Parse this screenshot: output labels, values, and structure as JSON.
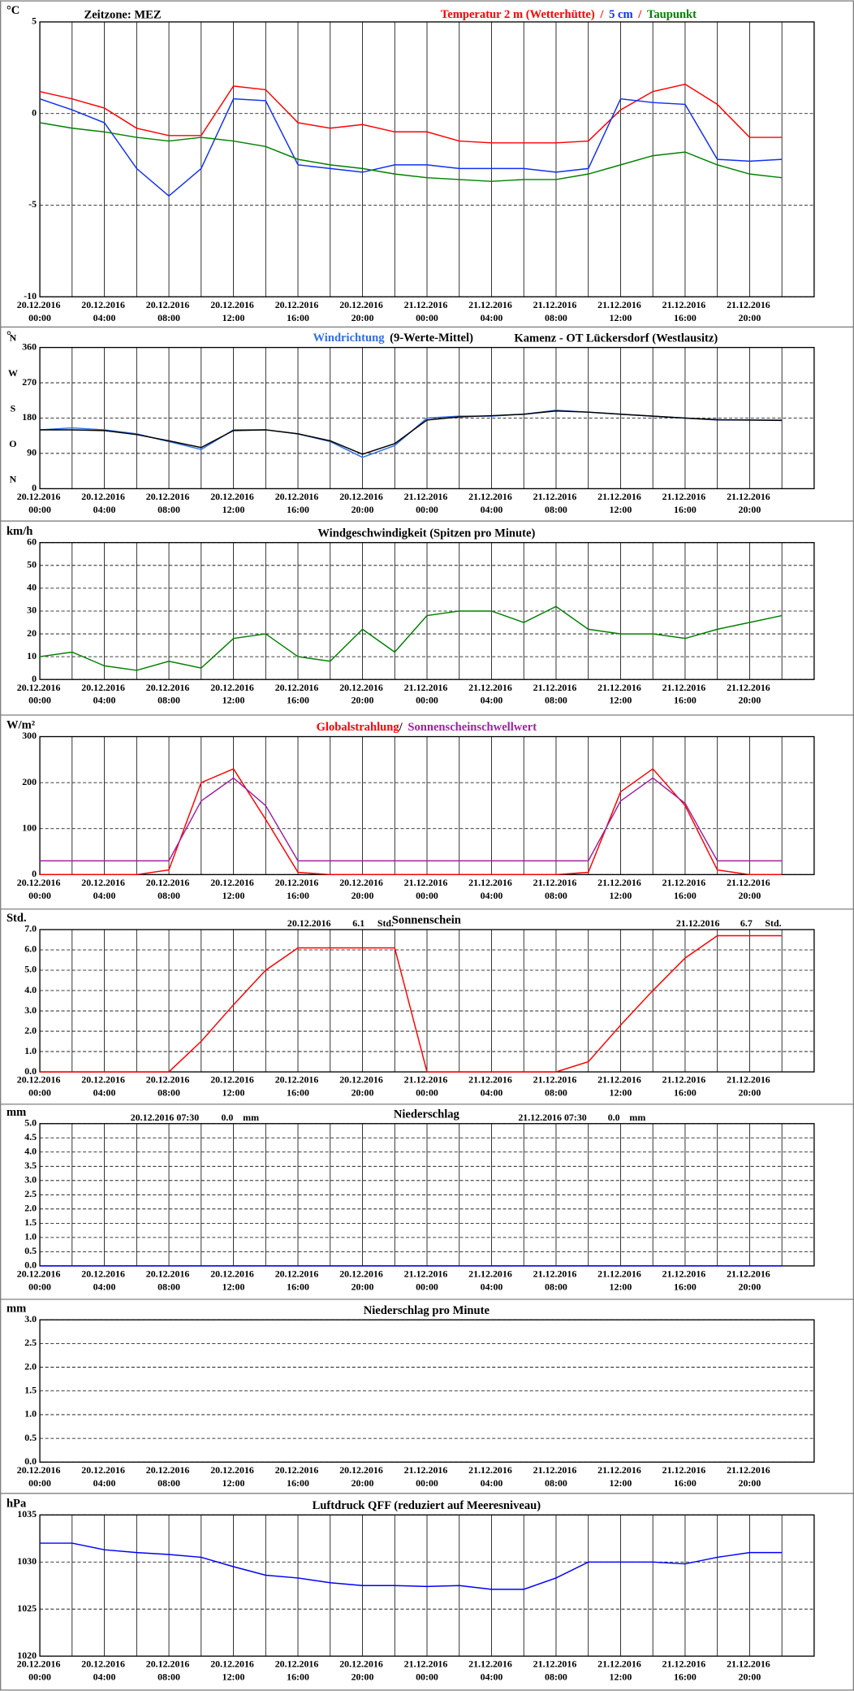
{
  "chart_data": [
    {
      "type": "line",
      "ylabel": "°C",
      "note": "Zeitzone: MEZ",
      "separator": "/",
      "x": [
        "20.12.2016 00:00",
        "20.12.2016 02:00",
        "20.12.2016 04:00",
        "20.12.2016 06:00",
        "20.12.2016 08:00",
        "20.12.2016 10:00",
        "20.12.2016 12:00",
        "20.12.2016 14:00",
        "20.12.2016 16:00",
        "20.12.2016 18:00",
        "20.12.2016 20:00",
        "20.12.2016 22:00",
        "21.12.2016 00:00",
        "21.12.2016 02:00",
        "21.12.2016 04:00",
        "21.12.2016 06:00",
        "21.12.2016 08:00",
        "21.12.2016 10:00",
        "21.12.2016 12:00",
        "21.12.2016 14:00",
        "21.12.2016 16:00",
        "21.12.2016 18:00",
        "21.12.2016 20:00",
        "21.12.2016 22:00"
      ],
      "xlim": [
        "20.12.2016 00:00",
        "21.12.2016 24:00"
      ],
      "xticks": [
        "20.12.2016 00:00",
        "20.12.2016 04:00",
        "20.12.2016 08:00",
        "20.12.2016 12:00",
        "20.12.2016 16:00",
        "20.12.2016 20:00",
        "21.12.2016 00:00",
        "21.12.2016 04:00",
        "21.12.2016 08:00",
        "21.12.2016 12:00",
        "21.12.2016 16:00",
        "21.12.2016 20:00"
      ],
      "ylim": [
        -10,
        5
      ],
      "yticks": [
        5,
        0,
        -5,
        -10
      ],
      "series": [
        {
          "name": "Temperatur 2 m (Wetterhütte)",
          "color": "#ff0000",
          "values": [
            1.2,
            0.8,
            0.3,
            -0.8,
            -1.2,
            -1.2,
            1.5,
            1.3,
            -0.5,
            -0.8,
            -0.6,
            -1.0,
            -1.0,
            -1.5,
            -1.6,
            -1.6,
            -1.6,
            -1.5,
            0.2,
            1.2,
            1.6,
            0.5,
            -1.3,
            -1.3
          ]
        },
        {
          "name": "5 cm",
          "color": "#1030f0",
          "values": [
            0.8,
            0.2,
            -0.5,
            -3.0,
            -4.5,
            -3.0,
            0.8,
            0.7,
            -2.8,
            -3.0,
            -3.2,
            -2.8,
            -2.8,
            -3.0,
            -3.0,
            -3.0,
            -3.2,
            -3.0,
            0.8,
            0.6,
            0.5,
            -2.5,
            -2.6,
            -2.5
          ]
        },
        {
          "name": "Taupunkt",
          "color": "#008000",
          "values": [
            -0.5,
            -0.8,
            -1.0,
            -1.3,
            -1.5,
            -1.3,
            -1.5,
            -1.8,
            -2.5,
            -2.8,
            -3.0,
            -3.3,
            -3.5,
            -3.6,
            -3.7,
            -3.6,
            -3.6,
            -3.3,
            -2.8,
            -2.3,
            -2.1,
            -2.8,
            -3.3,
            -3.5
          ]
        }
      ]
    },
    {
      "type": "line",
      "ylabel": "°",
      "subtitle": "Kamenz - OT Lückersdorf (Westlausitz)",
      "x": [
        "20.12.2016 00:00",
        "20.12.2016 02:00",
        "20.12.2016 04:00",
        "20.12.2016 06:00",
        "20.12.2016 08:00",
        "20.12.2016 10:00",
        "20.12.2016 12:00",
        "20.12.2016 14:00",
        "20.12.2016 16:00",
        "20.12.2016 18:00",
        "20.12.2016 20:00",
        "20.12.2016 22:00",
        "21.12.2016 00:00",
        "21.12.2016 02:00",
        "21.12.2016 04:00",
        "21.12.2016 06:00",
        "21.12.2016 08:00",
        "21.12.2016 10:00",
        "21.12.2016 12:00",
        "21.12.2016 14:00",
        "21.12.2016 16:00",
        "21.12.2016 18:00",
        "21.12.2016 20:00",
        "21.12.2016 22:00"
      ],
      "xlim": [
        "20.12.2016 00:00",
        "21.12.2016 24:00"
      ],
      "xticks": [
        "20.12.2016 00:00",
        "20.12.2016 04:00",
        "20.12.2016 08:00",
        "20.12.2016 12:00",
        "20.12.2016 16:00",
        "20.12.2016 20:00",
        "21.12.2016 00:00",
        "21.12.2016 04:00",
        "21.12.2016 08:00",
        "21.12.2016 12:00",
        "21.12.2016 16:00",
        "21.12.2016 20:00"
      ],
      "ylim": [
        0,
        360
      ],
      "yticks": [
        0,
        90,
        180,
        270,
        360
      ],
      "direction_labels": [
        {
          "value": 360,
          "label": "N"
        },
        {
          "value": 270,
          "label": "W"
        },
        {
          "value": 180,
          "label": "S"
        },
        {
          "value": 90,
          "label": "O"
        },
        {
          "value": 0,
          "label": "N"
        }
      ],
      "series": [
        {
          "name": "Windrichtung",
          "color": "#3070e8",
          "values": [
            150,
            155,
            150,
            140,
            120,
            100,
            150,
            150,
            140,
            120,
            80,
            110,
            180,
            185,
            185,
            190,
            200,
            195,
            190,
            185,
            180,
            175,
            175,
            175
          ]
        },
        {
          "name": "(9-Werte-Mittel)",
          "color": "#000000",
          "values": [
            150,
            150,
            148,
            138,
            122,
            105,
            148,
            150,
            140,
            122,
            88,
            115,
            175,
            183,
            186,
            190,
            198,
            195,
            190,
            185,
            180,
            176,
            175,
            174
          ]
        }
      ]
    },
    {
      "type": "line",
      "ylabel": "km/h",
      "title": "Windgeschwindigkeit (Spitzen pro Minute)",
      "x": [
        "20.12.2016 00:00",
        "20.12.2016 02:00",
        "20.12.2016 04:00",
        "20.12.2016 06:00",
        "20.12.2016 08:00",
        "20.12.2016 10:00",
        "20.12.2016 12:00",
        "20.12.2016 14:00",
        "20.12.2016 16:00",
        "20.12.2016 18:00",
        "20.12.2016 20:00",
        "20.12.2016 22:00",
        "21.12.2016 00:00",
        "21.12.2016 02:00",
        "21.12.2016 04:00",
        "21.12.2016 06:00",
        "21.12.2016 08:00",
        "21.12.2016 10:00",
        "21.12.2016 12:00",
        "21.12.2016 14:00",
        "21.12.2016 16:00",
        "21.12.2016 18:00",
        "21.12.2016 20:00",
        "21.12.2016 22:00"
      ],
      "xlim": [
        "20.12.2016 00:00",
        "21.12.2016 24:00"
      ],
      "xticks": [
        "20.12.2016 00:00",
        "20.12.2016 04:00",
        "20.12.2016 08:00",
        "20.12.2016 12:00",
        "20.12.2016 16:00",
        "20.12.2016 20:00",
        "21.12.2016 00:00",
        "21.12.2016 04:00",
        "21.12.2016 08:00",
        "21.12.2016 12:00",
        "21.12.2016 16:00",
        "21.12.2016 20:00"
      ],
      "ylim": [
        0,
        60
      ],
      "yticks": [
        0,
        10,
        20,
        30,
        40,
        50,
        60
      ],
      "series": [
        {
          "color": "#008000",
          "values": [
            10,
            12,
            6,
            4,
            8,
            5,
            18,
            20,
            10,
            8,
            22,
            12,
            28,
            30,
            30,
            25,
            32,
            22,
            20,
            20,
            18,
            22,
            25,
            28
          ]
        }
      ]
    },
    {
      "type": "line",
      "ylabel": "W/m²",
      "separator": "/",
      "x": [
        "20.12.2016 00:00",
        "20.12.2016 02:00",
        "20.12.2016 04:00",
        "20.12.2016 06:00",
        "20.12.2016 08:00",
        "20.12.2016 10:00",
        "20.12.2016 12:00",
        "20.12.2016 14:00",
        "20.12.2016 16:00",
        "20.12.2016 18:00",
        "20.12.2016 20:00",
        "20.12.2016 22:00",
        "21.12.2016 00:00",
        "21.12.2016 02:00",
        "21.12.2016 04:00",
        "21.12.2016 06:00",
        "21.12.2016 08:00",
        "21.12.2016 10:00",
        "21.12.2016 12:00",
        "21.12.2016 14:00",
        "21.12.2016 16:00",
        "21.12.2016 18:00",
        "21.12.2016 20:00",
        "21.12.2016 22:00"
      ],
      "xlim": [
        "20.12.2016 00:00",
        "21.12.2016 24:00"
      ],
      "xticks": [
        "20.12.2016 00:00",
        "20.12.2016 04:00",
        "20.12.2016 08:00",
        "20.12.2016 12:00",
        "20.12.2016 16:00",
        "20.12.2016 20:00",
        "21.12.2016 00:00",
        "21.12.2016 04:00",
        "21.12.2016 08:00",
        "21.12.2016 12:00",
        "21.12.2016 16:00",
        "21.12.2016 20:00"
      ],
      "ylim": [
        0,
        300
      ],
      "yticks": [
        0,
        100,
        200,
        300
      ],
      "series": [
        {
          "name": "Globalstrahlung",
          "color": "#ff0000",
          "values": [
            0,
            0,
            0,
            0,
            10,
            200,
            230,
            120,
            5,
            0,
            0,
            0,
            0,
            0,
            0,
            0,
            0,
            5,
            180,
            230,
            150,
            10,
            0,
            0
          ]
        },
        {
          "name": "Sonnenscheinschwellwert",
          "color": "#a020a0",
          "values": [
            30,
            30,
            30,
            30,
            30,
            160,
            210,
            150,
            30,
            30,
            30,
            30,
            30,
            30,
            30,
            30,
            30,
            30,
            160,
            210,
            155,
            30,
            30,
            30
          ]
        }
      ]
    },
    {
      "type": "line",
      "ylabel": "Std.",
      "title": "Sonnenschein",
      "annotations": [
        "20.12.2016",
        "6.1",
        "Std.",
        "21.12.2016",
        "6.7",
        "Std."
      ],
      "x": [
        "20.12.2016 00:00",
        "20.12.2016 02:00",
        "20.12.2016 04:00",
        "20.12.2016 06:00",
        "20.12.2016 08:00",
        "20.12.2016 10:00",
        "20.12.2016 12:00",
        "20.12.2016 14:00",
        "20.12.2016 16:00",
        "20.12.2016 18:00",
        "20.12.2016 20:00",
        "20.12.2016 22:00",
        "21.12.2016 00:00",
        "21.12.2016 02:00",
        "21.12.2016 04:00",
        "21.12.2016 06:00",
        "21.12.2016 08:00",
        "21.12.2016 10:00",
        "21.12.2016 12:00",
        "21.12.2016 14:00",
        "21.12.2016 16:00",
        "21.12.2016 18:00",
        "21.12.2016 20:00",
        "21.12.2016 22:00"
      ],
      "xlim": [
        "20.12.2016 00:00",
        "21.12.2016 24:00"
      ],
      "xticks": [
        "20.12.2016 00:00",
        "20.12.2016 04:00",
        "20.12.2016 08:00",
        "20.12.2016 12:00",
        "20.12.2016 16:00",
        "20.12.2016 20:00",
        "21.12.2016 00:00",
        "21.12.2016 04:00",
        "21.12.2016 08:00",
        "21.12.2016 12:00",
        "21.12.2016 16:00",
        "21.12.2016 20:00"
      ],
      "ylim": [
        0,
        7
      ],
      "yticks": [
        {
          "value": 0,
          "label": "0.0"
        },
        {
          "value": 1,
          "label": "1.0"
        },
        {
          "value": 2,
          "label": "2.0"
        },
        {
          "value": 3,
          "label": "3.0"
        },
        {
          "value": 4,
          "label": "4.0"
        },
        {
          "value": 5,
          "label": "5.0"
        },
        {
          "value": 6,
          "label": "6.0"
        },
        {
          "value": 7,
          "label": "7.0"
        }
      ],
      "series": [
        {
          "color": "#ff0000",
          "values": [
            0,
            0,
            0,
            0,
            0,
            1.5,
            3.3,
            5.0,
            6.1,
            6.1,
            6.1,
            6.1,
            0,
            0,
            0,
            0,
            0,
            0.5,
            2.3,
            4.0,
            5.6,
            6.7,
            6.7,
            6.7
          ]
        }
      ]
    },
    {
      "type": "line",
      "ylabel": "mm",
      "title": "Niederschlag",
      "annotations": [
        "20.12.2016 07:30",
        "0.0",
        "mm",
        "21.12.2016 07:30",
        "0.0",
        "mm"
      ],
      "x": [
        "20.12.2016 00:00",
        "20.12.2016 02:00",
        "20.12.2016 04:00",
        "20.12.2016 06:00",
        "20.12.2016 08:00",
        "20.12.2016 10:00",
        "20.12.2016 12:00",
        "20.12.2016 14:00",
        "20.12.2016 16:00",
        "20.12.2016 18:00",
        "20.12.2016 20:00",
        "20.12.2016 22:00",
        "21.12.2016 00:00",
        "21.12.2016 02:00",
        "21.12.2016 04:00",
        "21.12.2016 06:00",
        "21.12.2016 08:00",
        "21.12.2016 10:00",
        "21.12.2016 12:00",
        "21.12.2016 14:00",
        "21.12.2016 16:00",
        "21.12.2016 18:00",
        "21.12.2016 20:00",
        "21.12.2016 22:00"
      ],
      "xlim": [
        "20.12.2016 00:00",
        "21.12.2016 24:00"
      ],
      "xticks": [
        "20.12.2016 00:00",
        "20.12.2016 04:00",
        "20.12.2016 08:00",
        "20.12.2016 12:00",
        "20.12.2016 16:00",
        "20.12.2016 20:00",
        "21.12.2016 00:00",
        "21.12.2016 04:00",
        "21.12.2016 08:00",
        "21.12.2016 12:00",
        "21.12.2016 16:00",
        "21.12.2016 20:00"
      ],
      "ylim": [
        0,
        5
      ],
      "yticks": [
        {
          "value": 0,
          "label": "0.0"
        },
        {
          "value": 0.5,
          "label": "0.5"
        },
        {
          "value": 1,
          "label": "1.0"
        },
        {
          "value": 1.5,
          "label": "1.5"
        },
        {
          "value": 2,
          "label": "2.0"
        },
        {
          "value": 2.5,
          "label": "2.5"
        },
        {
          "value": 3,
          "label": "3.0"
        },
        {
          "value": 3.5,
          "label": "3.5"
        },
        {
          "value": 4,
          "label": "4.0"
        },
        {
          "value": 4.5,
          "label": "4.5"
        },
        {
          "value": 5,
          "label": "5.0"
        }
      ],
      "series": [
        {
          "color": "#0000ff",
          "values": [
            0,
            0,
            0,
            0,
            0,
            0,
            0,
            0,
            0,
            0,
            0,
            0,
            0,
            0,
            0,
            0,
            0,
            0,
            0,
            0,
            0,
            0,
            0,
            0
          ]
        }
      ]
    },
    {
      "type": "line",
      "ylabel": "mm",
      "title": "Niederschlag pro Minute",
      "xlim": [
        "20.12.2016 00:00",
        "21.12.2016 24:00"
      ],
      "xticks": [
        "20.12.2016 00:00",
        "20.12.2016 04:00",
        "20.12.2016 08:00",
        "20.12.2016 12:00",
        "20.12.2016 16:00",
        "20.12.2016 20:00",
        "21.12.2016 00:00",
        "21.12.2016 04:00",
        "21.12.2016 08:00",
        "21.12.2016 12:00",
        "21.12.2016 16:00",
        "21.12.2016 20:00"
      ],
      "ylim": [
        0,
        3
      ],
      "yticks": [
        {
          "value": 0,
          "label": "0.0"
        },
        {
          "value": 0.5,
          "label": "0.5"
        },
        {
          "value": 1,
          "label": "1.0"
        },
        {
          "value": 1.5,
          "label": "1.5"
        },
        {
          "value": 2,
          "label": "2.0"
        },
        {
          "value": 2.5,
          "label": "2.5"
        },
        {
          "value": 3,
          "label": "3.0"
        }
      ]
    },
    {
      "type": "line",
      "ylabel": "hPa",
      "title": "Luftdruck QFF (reduziert auf Meeresniveau)",
      "x": [
        "20.12.2016 00:00",
        "20.12.2016 02:00",
        "20.12.2016 04:00",
        "20.12.2016 06:00",
        "20.12.2016 08:00",
        "20.12.2016 10:00",
        "20.12.2016 12:00",
        "20.12.2016 14:00",
        "20.12.2016 16:00",
        "20.12.2016 18:00",
        "20.12.2016 20:00",
        "20.12.2016 22:00",
        "21.12.2016 00:00",
        "21.12.2016 02:00",
        "21.12.2016 04:00",
        "21.12.2016 06:00",
        "21.12.2016 08:00",
        "21.12.2016 10:00",
        "21.12.2016 12:00",
        "21.12.2016 14:00",
        "21.12.2016 16:00",
        "21.12.2016 18:00",
        "21.12.2016 20:00",
        "21.12.2016 22:00"
      ],
      "xlim": [
        "20.12.2016 00:00",
        "21.12.2016 24:00"
      ],
      "xticks": [
        "20.12.2016 00:00",
        "20.12.2016 04:00",
        "20.12.2016 08:00",
        "20.12.2016 12:00",
        "20.12.2016 16:00",
        "20.12.2016 20:00",
        "21.12.2016 00:00",
        "21.12.2016 04:00",
        "21.12.2016 08:00",
        "21.12.2016 12:00",
        "21.12.2016 16:00",
        "21.12.2016 20:00"
      ],
      "ylim": [
        1020,
        1035
      ],
      "yticks": [
        1020,
        1025,
        1030,
        1035
      ],
      "series": [
        {
          "color": "#0000ff",
          "values": [
            1032,
            1032,
            1031.3,
            1031,
            1030.8,
            1030.5,
            1029.5,
            1028.6,
            1028.3,
            1027.8,
            1027.5,
            1027.5,
            1027.4,
            1027.5,
            1027.1,
            1027.1,
            1028.3,
            1030,
            1030,
            1030,
            1029.8,
            1030.5,
            1031,
            1031
          ]
        }
      ]
    }
  ]
}
